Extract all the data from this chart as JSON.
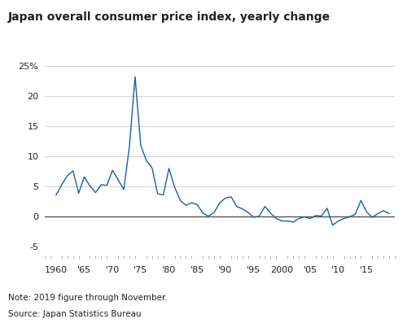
{
  "title": "Japan overall consumer price index, yearly change",
  "note": "Note: 2019 figure through November.",
  "source": "Source: Japan Statistics Bureau",
  "ylim": [
    -7,
    26
  ],
  "xlim": [
    1958,
    2020
  ],
  "yticks": [
    -5,
    0,
    5,
    10,
    15,
    20,
    25
  ],
  "xtick_labels": [
    "1960",
    "'65",
    "'70",
    "'75",
    "'80",
    "'85",
    "'90",
    "'95",
    "2000",
    "'05",
    "'10",
    "'15"
  ],
  "xtick_positions": [
    1960,
    1965,
    1970,
    1975,
    1980,
    1985,
    1990,
    1995,
    2000,
    2005,
    2010,
    2015
  ],
  "line_color": "#1a5fa8",
  "background_color": "#ffffff",
  "years": [
    1960,
    1961,
    1962,
    1963,
    1964,
    1965,
    1966,
    1967,
    1968,
    1969,
    1970,
    1971,
    1972,
    1973,
    1974,
    1975,
    1976,
    1977,
    1978,
    1979,
    1980,
    1981,
    1982,
    1983,
    1984,
    1985,
    1986,
    1987,
    1988,
    1989,
    1990,
    1991,
    1992,
    1993,
    1994,
    1995,
    1996,
    1997,
    1998,
    1999,
    2000,
    2001,
    2002,
    2003,
    2004,
    2005,
    2006,
    2007,
    2008,
    2009,
    2010,
    2011,
    2012,
    2013,
    2014,
    2015,
    2016,
    2017,
    2018,
    2019
  ],
  "values": [
    3.6,
    5.3,
    6.8,
    7.6,
    3.9,
    6.6,
    5.1,
    4.0,
    5.3,
    5.2,
    7.7,
    6.1,
    4.5,
    11.7,
    23.2,
    11.8,
    9.3,
    8.1,
    3.8,
    3.6,
    8.0,
    4.9,
    2.7,
    1.9,
    2.3,
    2.0,
    0.6,
    0.1,
    0.7,
    2.3,
    3.1,
    3.3,
    1.7,
    1.3,
    0.7,
    -0.1,
    0.1,
    1.7,
    0.6,
    -0.3,
    -0.7,
    -0.7,
    -0.9,
    -0.3,
    0.0,
    -0.3,
    0.2,
    0.1,
    1.4,
    -1.4,
    -0.7,
    -0.3,
    0.0,
    0.4,
    2.7,
    0.8,
    -0.1,
    0.5,
    1.0,
    0.5
  ],
  "grid_color": "#cccccc",
  "zero_line_color": "#555555",
  "tick_color": "#aaaaaa",
  "font_color": "#222222",
  "title_fontsize": 10,
  "axis_fontsize": 8,
  "note_fontsize": 7.5
}
